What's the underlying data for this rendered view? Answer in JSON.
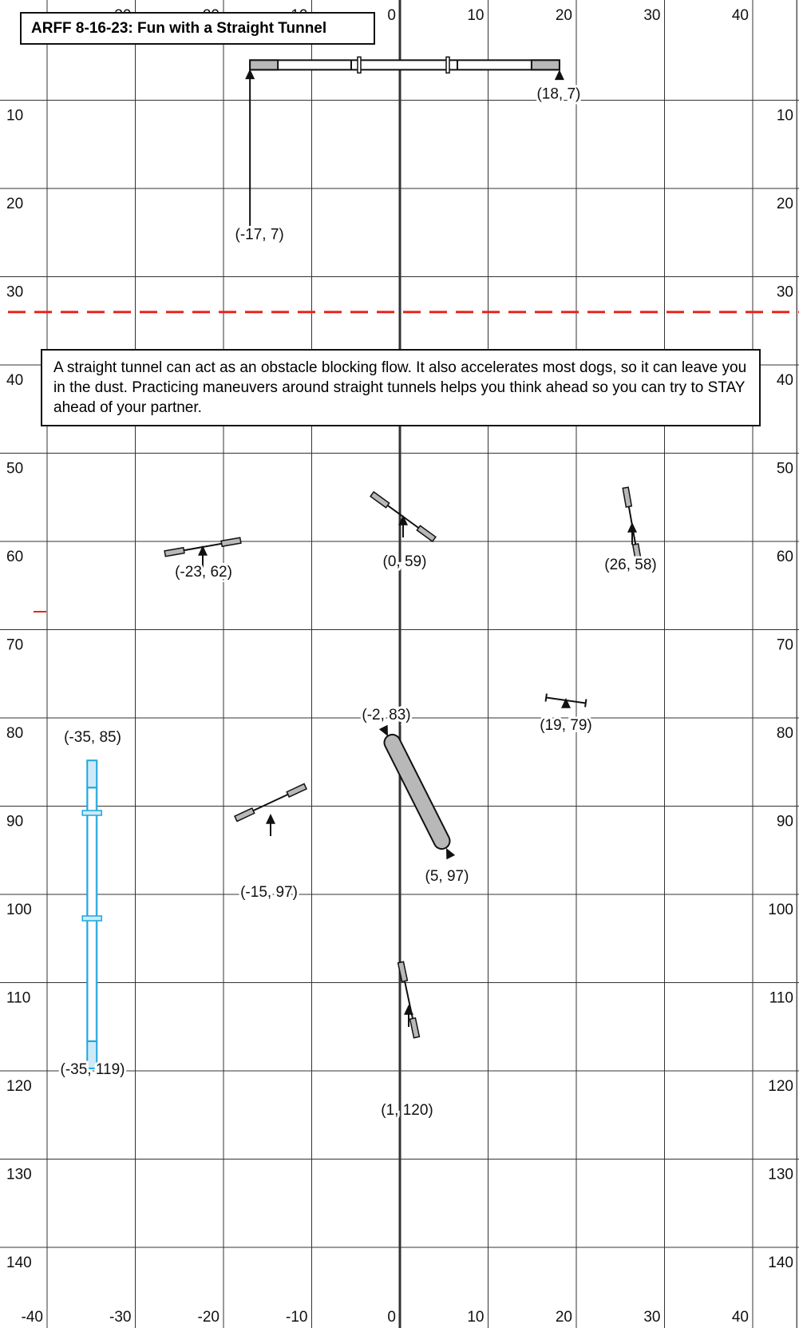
{
  "title": "ARFF 8-16-23: Fun with a Straight Tunnel",
  "note": "A straight tunnel can act as an obstacle blocking flow. It also accelerates most dogs, so it can leave you in the dust. Practicing maneuvers around straight tunnels helps you think ahead so you can try to STAY ahead of your partner.",
  "grid": {
    "x_range": [
      -45,
      45
    ],
    "y_range": [
      0,
      150
    ],
    "x_ticks": [
      -40,
      -30,
      -20,
      -10,
      0,
      10,
      20,
      30,
      40
    ],
    "y_ticks": [
      10,
      20,
      30,
      40,
      50,
      60,
      70,
      80,
      90,
      100,
      110,
      120,
      130,
      140
    ],
    "centerline_x": 0
  },
  "colors": {
    "grid": "#333333",
    "equipment_fill": "#b8b8b8",
    "start_line": "#e8231c",
    "dogwalk": "#1ba7e0",
    "dogwalk_fill": "#cfeaf7"
  },
  "start_line_y": 34,
  "equipment": [
    {
      "type": "seesaw",
      "label": "(-17, 7)",
      "x": -17,
      "y": 7,
      "arrow_from_y": 24
    },
    {
      "type": "seesaw-end",
      "label": "(18, 7)",
      "x": 18,
      "y": 7
    },
    {
      "type": "jump",
      "label": "(-23, 62)",
      "x": -23,
      "y": 62,
      "angle": -10
    },
    {
      "type": "jump",
      "label": "(0, 59)",
      "x": 0,
      "y": 59,
      "angle": 36
    },
    {
      "type": "jump",
      "label": "(26, 58)",
      "x": 26,
      "y": 58,
      "angle": 80
    },
    {
      "type": "bar",
      "label": "(19, 79)",
      "x": 19,
      "y": 79,
      "angle": 8
    },
    {
      "type": "tunnel",
      "label": "(-2, 83)",
      "x": -2,
      "y": 83
    },
    {
      "type": "tunnel-end",
      "label": "(5, 97)",
      "x": 5,
      "y": 97
    },
    {
      "type": "dogwalk",
      "label": "(-35, 85)",
      "x": -35,
      "y": 85
    },
    {
      "type": "dogwalk-end",
      "label": "(-35, 119)",
      "x": -35,
      "y": 119
    },
    {
      "type": "jump",
      "label": "(-15, 97)",
      "x": -15,
      "y": 97,
      "angle": -25
    },
    {
      "type": "jump",
      "label": "(1, 120)",
      "x": 1,
      "y": 120,
      "angle": 78
    }
  ]
}
